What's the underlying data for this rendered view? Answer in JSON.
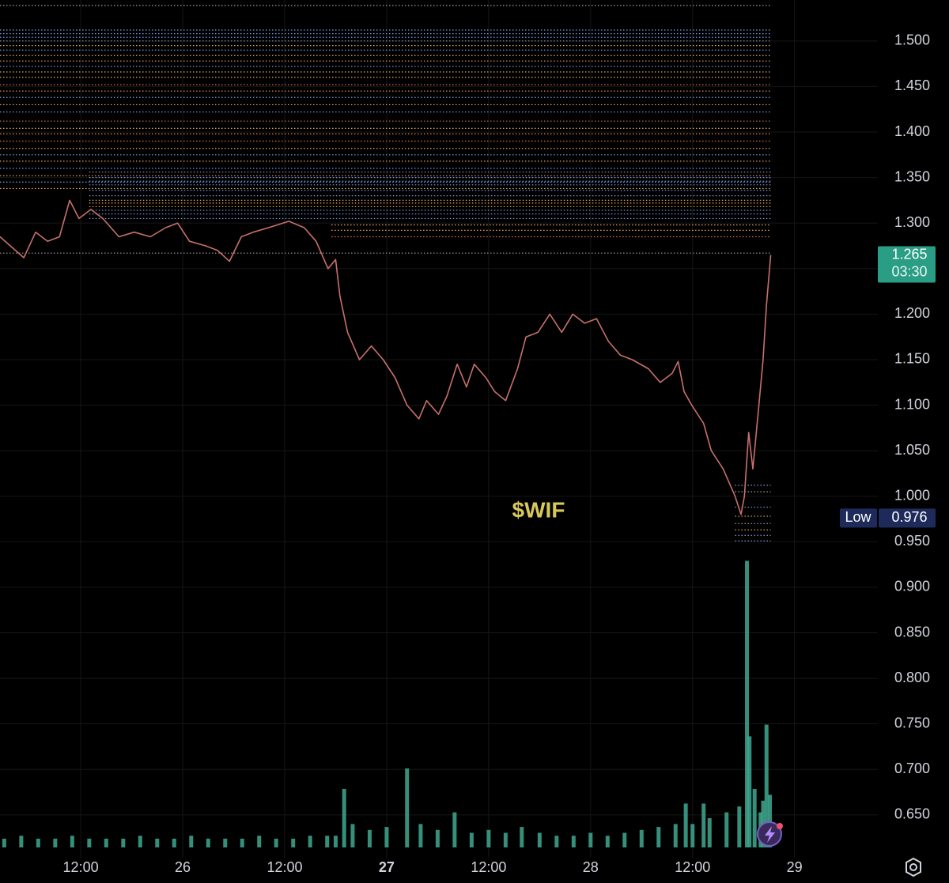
{
  "chart_data": {
    "type": "line",
    "annotation": "$WIF",
    "color": "#c8706c",
    "x": [
      2.5,
      5.3,
      6.7,
      8.1,
      9.5,
      10.7,
      11.8,
      13.2,
      14.6,
      16.5,
      18.3,
      20.2,
      22.0,
      23.4,
      24.8,
      26.7,
      28.1,
      29.5,
      30.9,
      32.3,
      34.1,
      36.5,
      38.3,
      39.7,
      41.1,
      42.0,
      42.5,
      43.4,
      44.8,
      46.2,
      47.6,
      49.0,
      50.4,
      51.8,
      52.7,
      54.1,
      55.1,
      56.3,
      57.4,
      58.3,
      59.7,
      60.7,
      62.0,
      63.4,
      64.4,
      65.8,
      67.2,
      68.6,
      69.9,
      71.3,
      72.7,
      74.1,
      75.5,
      76.9,
      78.8,
      80.2,
      81.6,
      82.3,
      83.0,
      83.9,
      85.3,
      86.2,
      87.6,
      89.0,
      89.7,
      90.1,
      90.6,
      91.1,
      91.8,
      92.3,
      92.7,
      93.2
    ],
    "values": [
      1.285,
      1.262,
      1.29,
      1.28,
      1.285,
      1.325,
      1.305,
      1.315,
      1.305,
      1.285,
      1.29,
      1.285,
      1.295,
      1.3,
      1.28,
      1.275,
      1.27,
      1.258,
      1.285,
      1.29,
      1.295,
      1.302,
      1.295,
      1.28,
      1.25,
      1.26,
      1.22,
      1.18,
      1.15,
      1.165,
      1.15,
      1.13,
      1.1,
      1.085,
      1.105,
      1.09,
      1.11,
      1.145,
      1.12,
      1.145,
      1.13,
      1.115,
      1.105,
      1.14,
      1.175,
      1.18,
      1.2,
      1.18,
      1.2,
      1.19,
      1.195,
      1.17,
      1.155,
      1.15,
      1.14,
      1.125,
      1.135,
      1.148,
      1.115,
      1.1,
      1.08,
      1.05,
      1.03,
      1.0,
      0.98,
      1.0,
      1.07,
      1.03,
      1.1,
      1.15,
      1.21,
      1.265
    ],
    "xlim": [
      2.5,
      105.8
    ],
    "ylim": [
      0.603,
      1.545
    ],
    "xticks": [
      {
        "value": 12,
        "label": "12:00"
      },
      {
        "value": 24,
        "label": "26"
      },
      {
        "value": 36,
        "label": "12:00"
      },
      {
        "value": 48,
        "label": "27"
      },
      {
        "value": 60,
        "label": "12:00"
      },
      {
        "value": 72,
        "label": "28"
      },
      {
        "value": 84,
        "label": "12:00"
      },
      {
        "value": 96,
        "label": "29"
      }
    ],
    "yticks": [
      {
        "value": 0.65,
        "label": "0.650"
      },
      {
        "value": 0.7,
        "label": "0.700"
      },
      {
        "value": 0.75,
        "label": "0.750"
      },
      {
        "value": 0.8,
        "label": "0.800"
      },
      {
        "value": 0.85,
        "label": "0.850"
      },
      {
        "value": 0.9,
        "label": "0.900"
      },
      {
        "value": 0.95,
        "label": "0.950"
      },
      {
        "value": 1.0,
        "label": "1.000"
      },
      {
        "value": 1.05,
        "label": "1.050"
      },
      {
        "value": 1.1,
        "label": "1.100"
      },
      {
        "value": 1.15,
        "label": "1.150"
      },
      {
        "value": 1.2,
        "label": "1.200"
      },
      {
        "value": 1.25,
        "label": "1.250"
      },
      {
        "value": 1.3,
        "label": "1.300"
      },
      {
        "value": 1.35,
        "label": "1.350"
      },
      {
        "value": 1.4,
        "label": "1.400"
      },
      {
        "value": 1.45,
        "label": "1.450"
      },
      {
        "value": 1.5,
        "label": "1.500"
      }
    ],
    "grid": true,
    "volume": {
      "color": "#3ea88f",
      "vlim": [
        0,
        100
      ],
      "x": [
        3,
        5,
        7,
        9,
        11,
        13,
        15,
        17,
        19,
        21,
        23,
        25,
        27,
        29,
        31,
        33,
        35,
        37,
        39,
        41,
        42,
        43.0,
        44,
        46,
        48,
        50.4,
        52,
        54,
        56,
        58,
        60,
        62,
        63.9,
        66,
        68,
        70,
        72,
        74,
        76,
        78,
        80,
        82,
        83.2,
        84,
        85.3,
        86,
        88,
        89.5,
        90.4,
        90.7,
        91.3,
        92,
        92.3,
        92.7,
        93.1
      ],
      "values": [
        3,
        4,
        3,
        3,
        4,
        3,
        3,
        3,
        4,
        3,
        3,
        4,
        3,
        3,
        3,
        4,
        3,
        3,
        4,
        4,
        4,
        20,
        8,
        6,
        7,
        27,
        8,
        6,
        12,
        5,
        6,
        5,
        7,
        5,
        4,
        4,
        5,
        4,
        5,
        6,
        7,
        8,
        15,
        8,
        15,
        10,
        12,
        14,
        98,
        38,
        20,
        12,
        16,
        42,
        18
      ]
    },
    "levels": {
      "values": [
        1.539,
        1.512,
        1.508,
        1.504,
        1.5,
        1.495,
        1.49,
        1.484,
        1.478,
        1.472,
        1.466,
        1.46,
        1.452,
        1.445,
        1.438,
        1.43,
        1.422,
        1.412,
        1.404,
        1.398,
        1.39,
        1.382,
        1.375,
        1.368,
        1.36,
        1.352,
        1.345,
        1.338,
        1.356,
        1.35,
        1.346,
        1.342,
        1.336,
        1.33,
        1.325,
        1.322,
        1.318,
        1.314,
        1.31,
        1.305,
        1.298,
        1.292,
        1.285,
        1.267,
        1.012,
        1.005,
        0.988,
        0.978,
        0.97,
        0.963,
        0.957,
        0.951
      ],
      "colors": [
        "#9aa0a6",
        "#7a9ee8",
        "#7a9ee8",
        "#7a9ee8",
        "#7a9ee8",
        "#e8a55a",
        "#7a9ee8",
        "#e8a55a",
        "#e8a55a",
        "#7a9ee8",
        "#e8a55a",
        "#e8a55a",
        "#e06a5a",
        "#e8a55a",
        "#7a9ee8",
        "#e8a55a",
        "#7a9ee8",
        "#e06a5a",
        "#e8a55a",
        "#e8a55a",
        "#e06a5a",
        "#e8a55a",
        "#7a9ee8",
        "#e8a55a",
        "#7a9ee8",
        "#e8a55a",
        "#7a9ee8",
        "#e8a55a",
        "#7a9ee8",
        "#7a9ee8",
        "#7a9ee8",
        "#7a9ee8",
        "#7a9ee8",
        "#7a9ee8",
        "#e8a55a",
        "#e8a55a",
        "#e8a55a",
        "#7a9ee8",
        "#7a9ee8",
        "#7a9ee8",
        "#e8a55a",
        "#e8a55a",
        "#e06a5a",
        "#9aa0a6",
        "#7a9ee8",
        "#9aa0a6",
        "#7a9ee8",
        "#e8a55a",
        "#9aa0a6",
        "#e8a55a",
        "#7a9ee8",
        "#7a9ee8"
      ],
      "start": [
        2.5,
        2.5,
        2.5,
        2.5,
        2.5,
        2.5,
        2.5,
        2.5,
        2.5,
        2.5,
        2.5,
        2.5,
        2.5,
        2.5,
        2.5,
        2.5,
        2.5,
        2.5,
        2.5,
        2.5,
        2.5,
        2.5,
        2.5,
        2.5,
        2.5,
        2.5,
        2.5,
        2.5,
        13,
        13,
        13,
        13,
        13,
        13,
        13,
        13,
        13,
        13,
        13,
        13,
        41.5,
        41.5,
        41.5,
        2.5,
        89,
        89,
        89,
        89,
        89,
        89,
        89,
        89
      ]
    },
    "level_end": 93.2,
    "last_price": {
      "value": 1.265,
      "time": "03:30",
      "color": "#2a9d85"
    },
    "low": {
      "label": "Low",
      "value": 0.976,
      "color": "#1e2b5a"
    }
  }
}
